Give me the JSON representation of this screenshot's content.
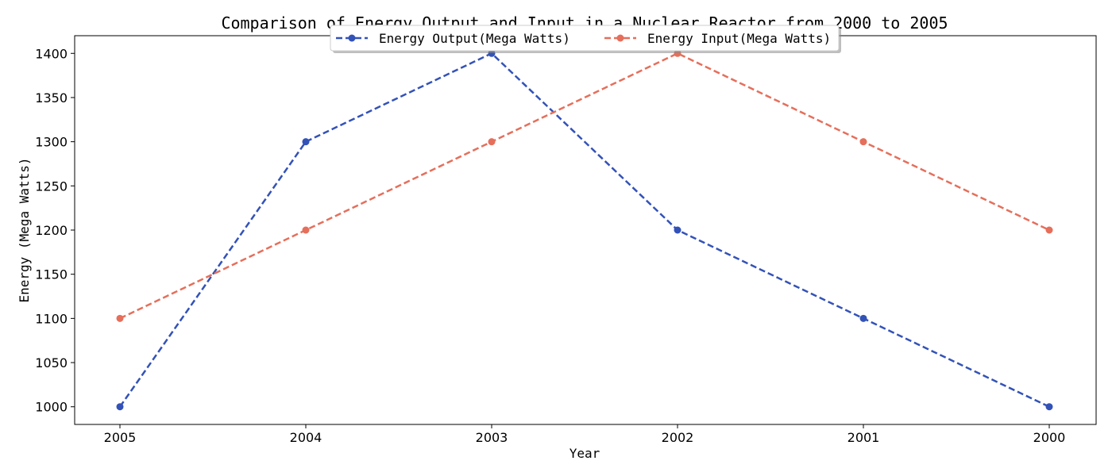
{
  "chart_data": {
    "type": "line",
    "title": "Comparison of Energy Output and Input in a Nuclear Reactor from 2000 to 2005",
    "xlabel": "Year",
    "ylabel": "Energy (Mega Watts)",
    "categories": [
      "2005",
      "2004",
      "2003",
      "2002",
      "2001",
      "2000"
    ],
    "ylim": [
      980,
      1420
    ],
    "yticks": [
      1000,
      1050,
      1100,
      1150,
      1200,
      1250,
      1300,
      1350,
      1400
    ],
    "grid": false,
    "legend": "top-center",
    "series": [
      {
        "name": "Energy Output(Mega Watts)",
        "values": [
          1000,
          1300,
          1400,
          1200,
          1100,
          1000
        ],
        "color": "#3352b8",
        "line_style": "dashed",
        "marker": "circle"
      },
      {
        "name": "Energy Input(Mega Watts)",
        "values": [
          1100,
          1200,
          1300,
          1400,
          1300,
          1200
        ],
        "color": "#e56f5b",
        "line_style": "dashed",
        "marker": "circle"
      }
    ]
  }
}
